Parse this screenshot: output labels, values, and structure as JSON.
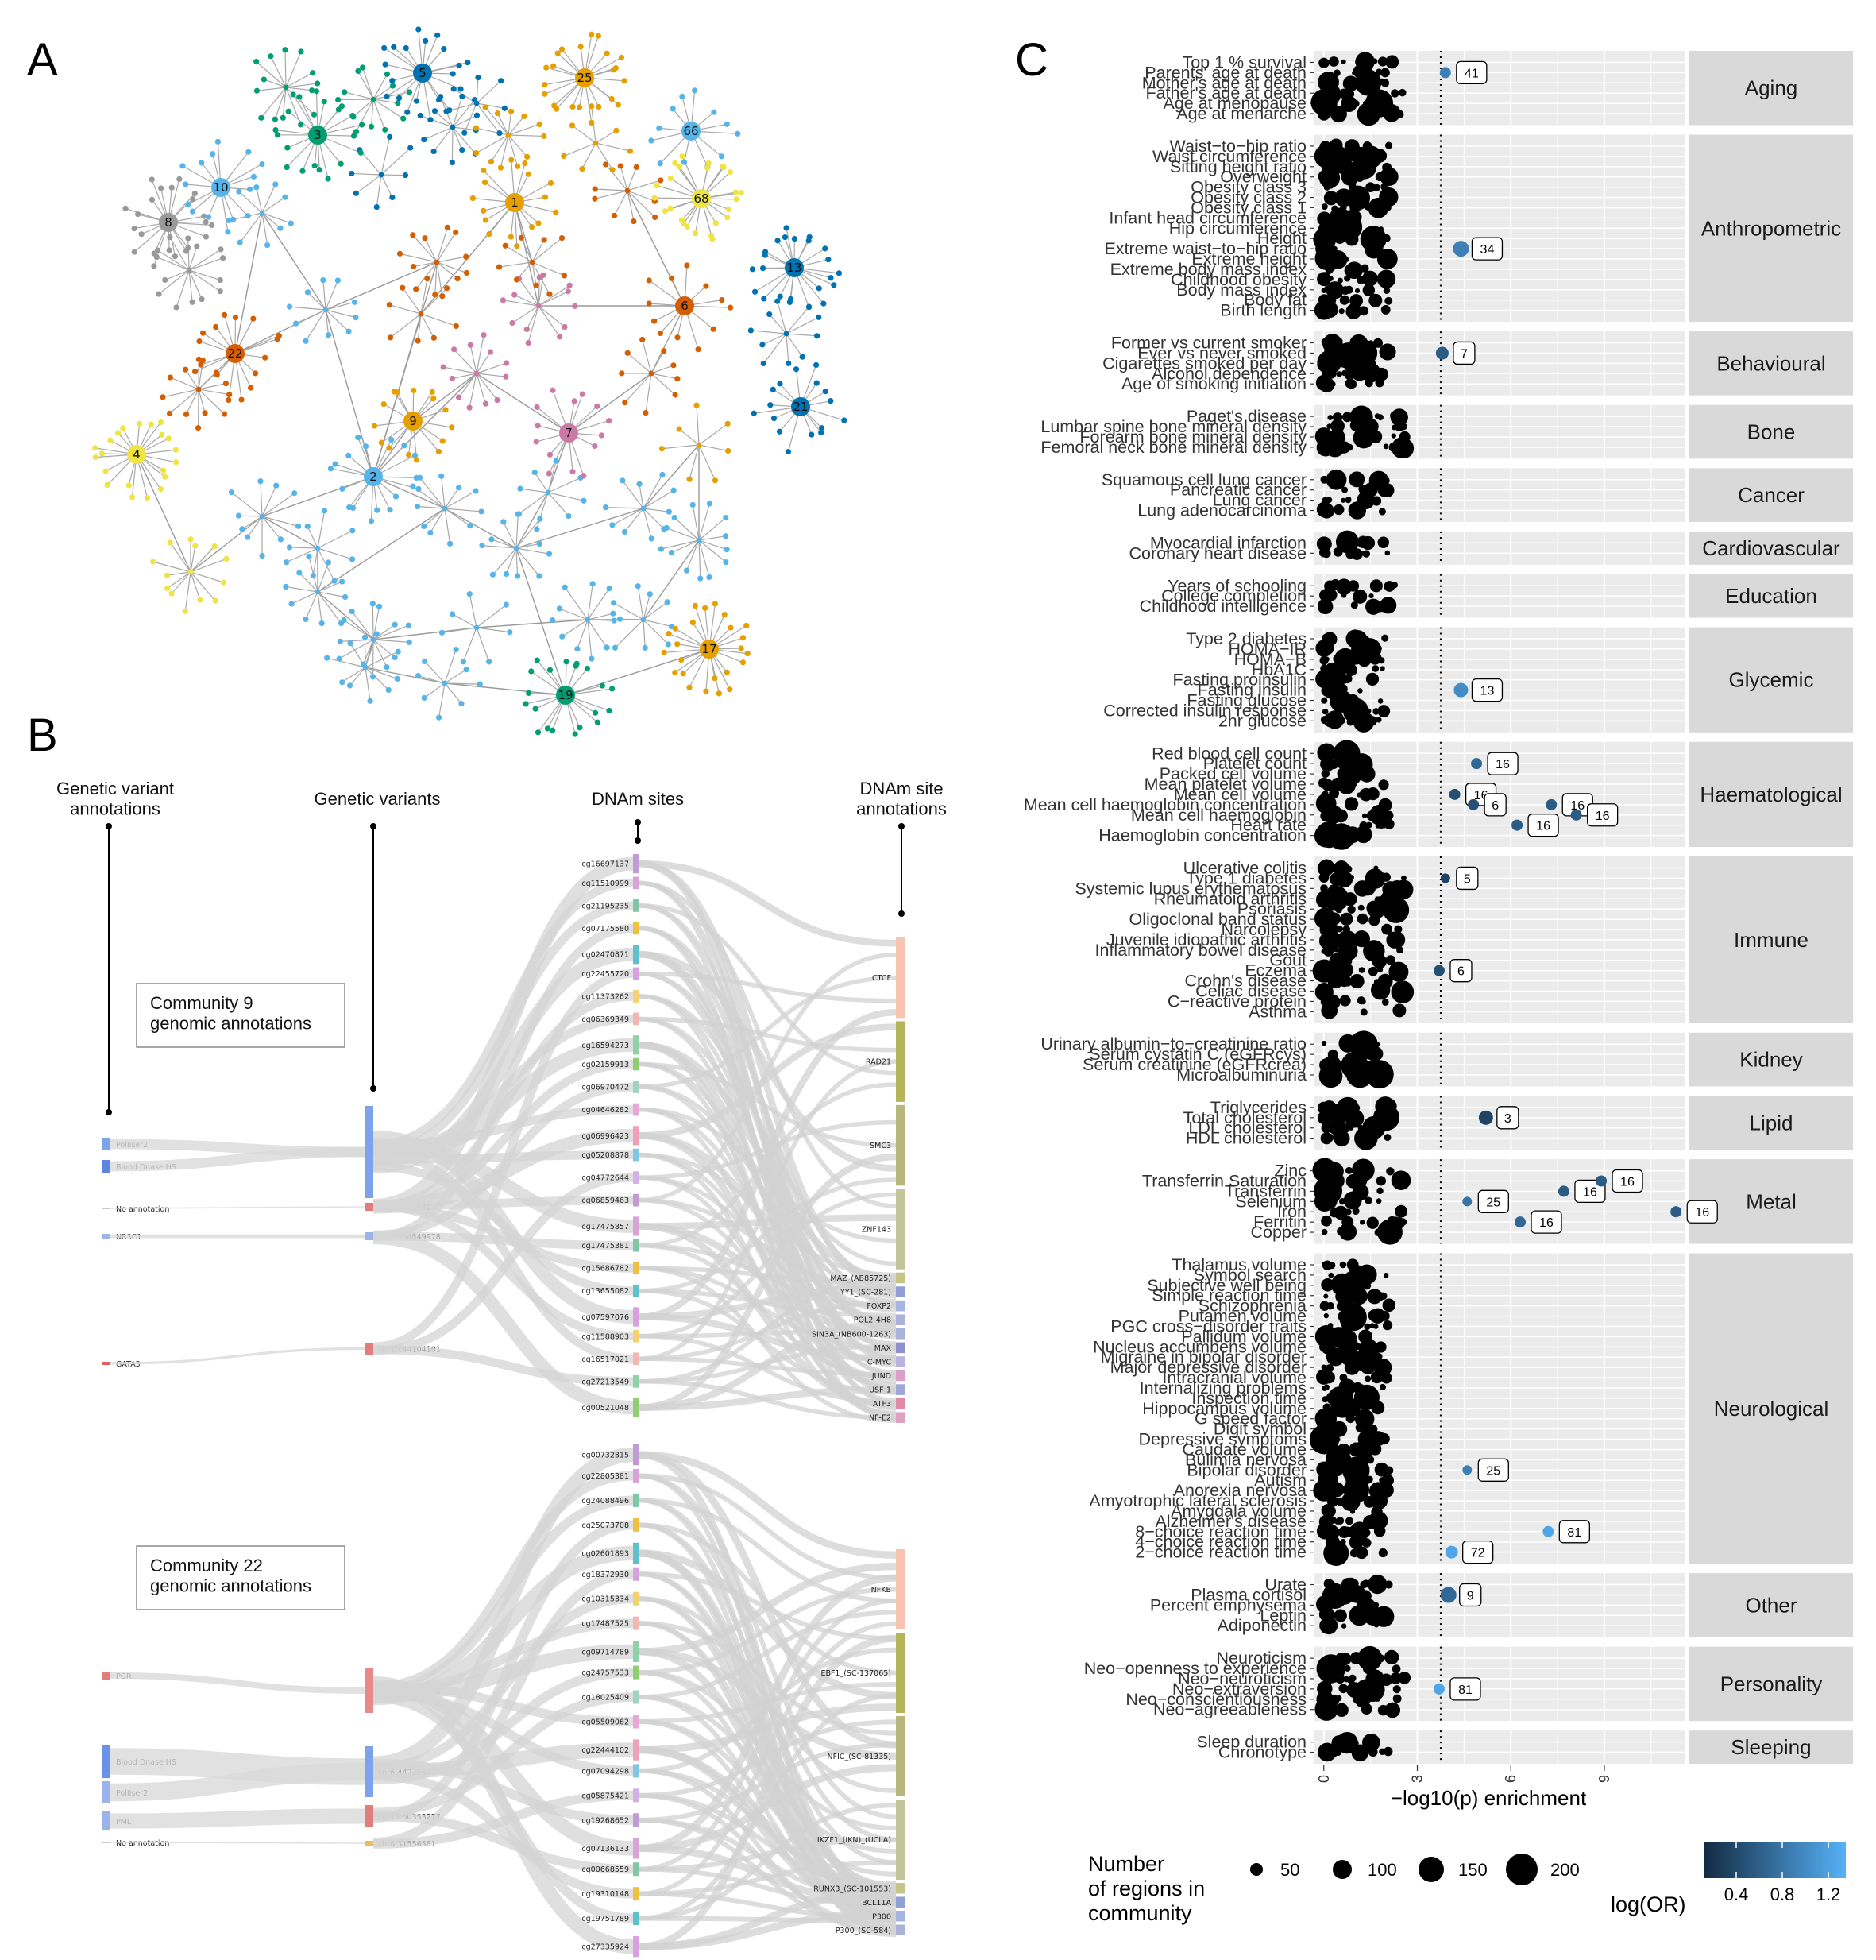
{
  "panels": {
    "a": "A",
    "b": "B",
    "c": "C"
  },
  "network": {
    "communities": [
      {
        "id": "1",
        "color": "#e69f00"
      },
      {
        "id": "2",
        "color": "#56b4e9"
      },
      {
        "id": "3",
        "color": "#009e73"
      },
      {
        "id": "4",
        "color": "#f0e442"
      },
      {
        "id": "5",
        "color": "#0072b2"
      },
      {
        "id": "6",
        "color": "#d55e00"
      },
      {
        "id": "7",
        "color": "#cc79a7"
      },
      {
        "id": "8",
        "color": "#999999"
      },
      {
        "id": "9",
        "color": "#e69f00"
      },
      {
        "id": "10",
        "color": "#56b4e9"
      },
      {
        "id": "13",
        "color": "#0072b2"
      },
      {
        "id": "17",
        "color": "#e69f00"
      },
      {
        "id": "19",
        "color": "#009e73"
      },
      {
        "id": "21",
        "color": "#0072b2"
      },
      {
        "id": "22",
        "color": "#d55e00"
      },
      {
        "id": "25",
        "color": "#e69f00"
      },
      {
        "id": "66",
        "color": "#56b4e9"
      },
      {
        "id": "68",
        "color": "#f0e442"
      }
    ]
  },
  "sankey": {
    "headers": {
      "variant_annotations": "Genetic variant\nannotations",
      "variants": "Genetic variants",
      "dnam_sites": "DNAm sites",
      "dnam_annotations": "DNAm site\nannotations"
    },
    "community9": {
      "box": "Community 9\ngenomic annotations",
      "variant_annotations": [
        "PolIIser2",
        "Blood Dnase HS",
        "No annotation",
        "NR3C1",
        "GATA3"
      ],
      "variants": [
        "chr20:49489520",
        "chr4:2404840",
        "chr12:54649978",
        "chr10:44104101"
      ],
      "sites": [
        "cg16697137",
        "cg11510999",
        "cg21195235",
        "cg07175580",
        "cg02470871",
        "cg22455720",
        "cg11373262",
        "cg06369349",
        "cg16594273",
        "cg02159913",
        "cg06970472",
        "cg04646282",
        "cg06996423",
        "cg05208878",
        "cg04772644",
        "cg06859463",
        "cg17475857",
        "cg17475381",
        "cg15686782",
        "cg13655082",
        "cg07597076",
        "cg11588903",
        "cg16517021",
        "cg27213549",
        "cg00521048"
      ],
      "site_annotations": [
        "CTCF",
        "RAD21",
        "SMC3",
        "ZNF143",
        "MAZ_(AB85725)",
        "YY1_(SC-281)",
        "FOXP2",
        "POL2-4H8",
        "SIN3A_(NB600-1263)",
        "MAX",
        "C-MYC",
        "JUND",
        "USF-1",
        "ATF3",
        "NF-E2"
      ]
    },
    "community22": {
      "box": "Community 22\ngenomic annotations",
      "variant_annotations": [
        "PGR",
        "Blood Dnase HS",
        "PolIIser2",
        "PML",
        "No annotation"
      ],
      "variants": [
        "chr4:103390496",
        "chr6:44232074",
        "chr15:50353277",
        "chr6:31556581"
      ],
      "sites": [
        "cg00732815",
        "cg22805381",
        "cg24088496",
        "cg25073708",
        "cg02601893",
        "cg18372930",
        "cg10315334",
        "cg17487525",
        "cg09714789",
        "cg24757533",
        "cg18025409",
        "cg05509062",
        "cg22444102",
        "cg07094298",
        "cg05875421",
        "cg19268652",
        "cg07136133",
        "cg00668559",
        "cg19310148",
        "cg19751789",
        "cg27335924"
      ],
      "site_annotations": [
        "NFKB",
        "EBF1_(SC-137065)",
        "NFIC_(SC-81335)",
        "IKZF1_(IKN)_(UCLA)",
        "RUNX3_(SC-101553)",
        "BCL11A",
        "P300",
        "P300_(SC-584)"
      ]
    }
  },
  "chart_data": {
    "type": "scatter",
    "xlabel": "−log10(p) enrichment",
    "xticks": [
      "0",
      "3",
      "6",
      "9"
    ],
    "xlim": [
      -0.3,
      11.6
    ],
    "threshold": 3.75,
    "size_legend": {
      "title": "Number\nof regions in\ncommunity",
      "values": [
        "50",
        "100",
        "150",
        "200"
      ]
    },
    "color_legend": {
      "title": "log(OR)",
      "ticks": [
        "0.4",
        "0.8",
        "1.2"
      ],
      "low": "#132b43",
      "high": "#56b1f7"
    },
    "groups": [
      {
        "name": "Aging",
        "traits": [
          "Top 1 % survival",
          "Parents' age at death",
          "Mother's age at death",
          "Father's age at death",
          "Age at menopause",
          "Age at menarche"
        ]
      },
      {
        "name": "Anthropometric",
        "traits": [
          "Waist−to−hip ratio",
          "Waist circumference",
          "Sitting height ratio",
          "Overweight",
          "Obesity class 3",
          "Obesity class 2",
          "Obesity class 1",
          "Infant head circumference",
          "Hip circumference",
          "Height",
          "Extreme waist−to−hip ratio",
          "Extreme height",
          "Extreme body mass index",
          "Childhood obesity",
          "Body mass index",
          "Body fat",
          "Birth length"
        ]
      },
      {
        "name": "Behavioural",
        "traits": [
          "Former vs current smoker",
          "Ever vs never smoked",
          "Cigarettes smoked per day",
          "Alcohol dependence",
          "Age of smoking initiation"
        ]
      },
      {
        "name": "Bone",
        "traits": [
          "Paget's disease",
          "Lumbar spine bone mineral density",
          "Forearm bone mineral density",
          "Femoral neck bone mineral density"
        ]
      },
      {
        "name": "Cancer",
        "traits": [
          "Squamous cell lung cancer",
          "Pancreatic cancer",
          "Lung cancer",
          "Lung adenocarcinoma"
        ]
      },
      {
        "name": "Cardiovascular",
        "traits": [
          "Myocardial infarction",
          "Coronary heart disease"
        ]
      },
      {
        "name": "Education",
        "traits": [
          "Years of schooling",
          "College completion",
          "Childhood intelligence"
        ]
      },
      {
        "name": "Glycemic",
        "traits": [
          "Type 2 diabetes",
          "HOMA−IR",
          "HOMA−B",
          "HbA1C",
          "Fasting proinsulin",
          "Fasting insulin",
          "Fasting glucose",
          "Corrected insulin response",
          "2hr glucose"
        ]
      },
      {
        "name": "Haematological",
        "traits": [
          "Red blood cell count",
          "Platelet count",
          "Packed cell volume",
          "Mean platelet volume",
          "Mean cell volume",
          "Mean cell haemoglobin concentration",
          "Mean cell haemoglobin",
          "Heart rate",
          "Haemoglobin concentration"
        ]
      },
      {
        "name": "Immune",
        "traits": [
          "Ulcerative colitis",
          "Type 1 diabetes",
          "Systemic lupus erythematosus",
          "Rheumatoid arthritis",
          "Psoriasis",
          "Oligoclonal band status",
          "Narcolepsy",
          "Juvenile idiopathic arthritis",
          "Inflammatory bowel disease",
          "Gout",
          "Eczema",
          "Crohn's disease",
          "Celiac disease",
          "C−reactive protein",
          "Asthma"
        ]
      },
      {
        "name": "Kidney",
        "traits": [
          "Urinary albumin−to−creatinine ratio",
          "Serum cystatin C (eGFRcys)",
          "Serum creatinine (eGFRcrea)",
          "Microalbuminuria"
        ]
      },
      {
        "name": "Lipid",
        "traits": [
          "Triglycerides",
          "Total cholesterol",
          "LDL cholesterol",
          "HDL cholesterol"
        ]
      },
      {
        "name": "Metal",
        "traits": [
          "Zinc",
          "Transferrin Saturation",
          "Transferrin",
          "Selenium",
          "Iron",
          "Ferritin",
          "Copper"
        ]
      },
      {
        "name": "Neurological",
        "traits": [
          "Thalamus volume",
          "Symbol search",
          "Subjective well being",
          "Simple reaction time",
          "Schizophrenia",
          "Putamen volume",
          "PGC cross−disorder traits",
          "Pallidum volume",
          "Nucleus accumbens volume",
          "Migraine in bipolar disorder",
          "Major depressive disorder",
          "Intracranial volume",
          "Internalizing problems",
          "Inspection time",
          "Hippocampus volume",
          "G speed factor",
          "Digit symbol",
          "Depressive symptoms",
          "Caudate volume",
          "Bulimia nervosa",
          "Bipolar disorder",
          "Autism",
          "Anorexia nervosa",
          "Amyotrophic lateral sclerosis",
          "Amygdala volume",
          "Alzheimer's disease",
          "8−choice reaction time",
          "4−choice reaction time",
          "2−choice reaction time"
        ]
      },
      {
        "name": "Other",
        "traits": [
          "Urate",
          "Plasma cortisol",
          "Percent emphysema",
          "Leptin",
          "Adiponectin"
        ]
      },
      {
        "name": "Personality",
        "traits": [
          "Neuroticism",
          "Neo−openness to experience",
          "Neo−neuroticism",
          "Neo−extraversion",
          "Neo−conscientiousness",
          "Neo−agreeableness"
        ]
      },
      {
        "name": "Sleeping",
        "traits": [
          "Sleep duration",
          "Chronotype"
        ]
      }
    ],
    "significant": [
      {
        "trait": "Parents' age at death",
        "community": "41",
        "x": 3.9,
        "log_or": 0.9
      },
      {
        "trait": "Extreme waist−to−hip ratio",
        "community": "34",
        "x": 4.4,
        "log_or": 0.9
      },
      {
        "trait": "Ever vs never smoked",
        "community": "7",
        "x": 3.8,
        "log_or": 0.6
      },
      {
        "trait": "Fasting insulin",
        "community": "13",
        "x": 4.4,
        "log_or": 1.0
      },
      {
        "trait": "Platelet count",
        "community": "16",
        "x": 4.9,
        "log_or": 0.7
      },
      {
        "trait": "Mean cell volume",
        "community": "16",
        "x": 4.2,
        "log_or": 0.5
      },
      {
        "trait": "Mean cell haemoglobin concentration",
        "community": "6",
        "x": 4.8,
        "log_or": 0.5
      },
      {
        "trait": "Mean cell haemoglobin concentration",
        "community": "16",
        "x": 7.3,
        "log_or": 0.6
      },
      {
        "trait": "Mean cell haemoglobin",
        "community": "16",
        "x": 8.1,
        "log_or": 0.6
      },
      {
        "trait": "Heart rate",
        "community": "16",
        "x": 6.2,
        "log_or": 0.6
      },
      {
        "trait": "Type 1 diabetes",
        "community": "5",
        "x": 3.9,
        "log_or": 0.4
      },
      {
        "trait": "Eczema",
        "community": "6",
        "x": 3.7,
        "log_or": 0.5
      },
      {
        "trait": "Total cholesterol",
        "community": "3",
        "x": 5.2,
        "log_or": 0.4
      },
      {
        "trait": "Transferrin",
        "community": "16",
        "x": 7.7,
        "log_or": 0.6
      },
      {
        "trait": "Transferrin Saturation",
        "community": "16",
        "x": 8.9,
        "log_or": 0.6
      },
      {
        "trait": "Selenium",
        "community": "25",
        "x": 4.6,
        "log_or": 0.8
      },
      {
        "trait": "Ferritin",
        "community": "16",
        "x": 6.3,
        "log_or": 0.7
      },
      {
        "trait": "Iron",
        "community": "16",
        "x": 11.3,
        "log_or": 0.6
      },
      {
        "trait": "Bipolar disorder",
        "community": "25",
        "x": 4.6,
        "log_or": 0.9
      },
      {
        "trait": "8−choice reaction time",
        "community": "81",
        "x": 7.2,
        "log_or": 1.2
      },
      {
        "trait": "2−choice reaction time",
        "community": "72",
        "x": 4.1,
        "log_or": 1.2
      },
      {
        "trait": "Plasma cortisol",
        "community": "9",
        "x": 4.0,
        "log_or": 0.7
      },
      {
        "trait": "Neo−extraversion",
        "community": "81",
        "x": 3.7,
        "log_or": 1.2
      }
    ]
  }
}
